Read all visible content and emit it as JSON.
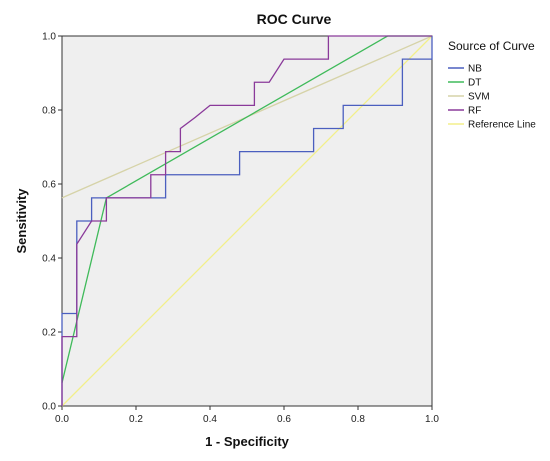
{
  "chart_data": {
    "type": "line",
    "title": "ROC Curve",
    "xlabel": "1 - Specificity",
    "ylabel": "Sensitivity",
    "xlim": [
      0,
      1
    ],
    "ylim": [
      0,
      1
    ],
    "x_ticks": [
      "0.0",
      "0.2",
      "0.4",
      "0.6",
      "0.8",
      "1.0"
    ],
    "y_ticks": [
      "0.0",
      "0.2",
      "0.4",
      "0.6",
      "0.8",
      "1.0"
    ],
    "grid": false,
    "legend": {
      "title": "Source of Curve",
      "position": "right"
    },
    "series": [
      {
        "name": "NB",
        "color": "#4b5fbf",
        "points": [
          [
            0,
            0
          ],
          [
            0,
            0.25
          ],
          [
            0.04,
            0.25
          ],
          [
            0.04,
            0.5
          ],
          [
            0.08,
            0.5
          ],
          [
            0.08,
            0.5625
          ],
          [
            0.28,
            0.5625
          ],
          [
            0.28,
            0.625
          ],
          [
            0.48,
            0.625
          ],
          [
            0.48,
            0.6875
          ],
          [
            0.68,
            0.6875
          ],
          [
            0.68,
            0.75
          ],
          [
            0.76,
            0.75
          ],
          [
            0.76,
            0.8125
          ],
          [
            0.92,
            0.8125
          ],
          [
            0.92,
            0.9375
          ],
          [
            1,
            0.9375
          ],
          [
            1,
            1
          ]
        ]
      },
      {
        "name": "DT",
        "color": "#3fba5a",
        "points": [
          [
            0,
            0.0625
          ],
          [
            0.12,
            0.5625
          ],
          [
            0.88,
            1
          ],
          [
            1,
            1
          ]
        ]
      },
      {
        "name": "SVM",
        "color": "#d6d3a8",
        "points": [
          [
            0,
            0.5625
          ],
          [
            1,
            1
          ]
        ]
      },
      {
        "name": "RF",
        "color": "#8a3a9a",
        "points": [
          [
            0,
            0
          ],
          [
            0,
            0.1875
          ],
          [
            0.04,
            0.1875
          ],
          [
            0.04,
            0.4375
          ],
          [
            0.08,
            0.5
          ],
          [
            0.12,
            0.5
          ],
          [
            0.12,
            0.5625
          ],
          [
            0.24,
            0.5625
          ],
          [
            0.24,
            0.625
          ],
          [
            0.28,
            0.625
          ],
          [
            0.28,
            0.6875
          ],
          [
            0.32,
            0.6875
          ],
          [
            0.32,
            0.75
          ],
          [
            0.36,
            0.78
          ],
          [
            0.4,
            0.8125
          ],
          [
            0.52,
            0.8125
          ],
          [
            0.52,
            0.875
          ],
          [
            0.56,
            0.875
          ],
          [
            0.6,
            0.9375
          ],
          [
            0.72,
            0.9375
          ],
          [
            0.72,
            1
          ],
          [
            1,
            1
          ]
        ]
      },
      {
        "name": "Reference Line",
        "color": "#f2ef8a",
        "points": [
          [
            0,
            0
          ],
          [
            1,
            1
          ]
        ]
      }
    ]
  }
}
